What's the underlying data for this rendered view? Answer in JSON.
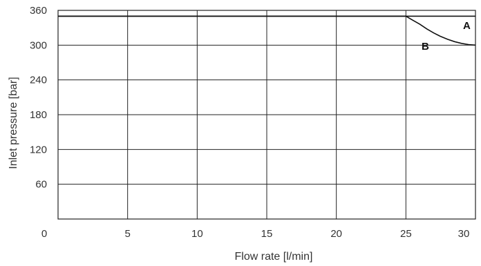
{
  "chart_data": {
    "type": "line",
    "xlabel": "Flow rate [l/min]",
    "ylabel": "Inlet pressure [bar]",
    "xlim": [
      0,
      30
    ],
    "ylim": [
      0,
      360
    ],
    "x_ticks": [
      0,
      5,
      10,
      15,
      20,
      25,
      30
    ],
    "y_ticks": [
      60,
      120,
      180,
      240,
      300,
      360
    ],
    "y_tick_labels_shown": [
      60,
      120,
      180,
      240,
      300,
      360
    ],
    "grid": true,
    "series": [
      {
        "name": "A",
        "x": [
          0,
          25,
          30
        ],
        "y": [
          350,
          350,
          350
        ]
      },
      {
        "name": "B",
        "x": [
          0,
          25,
          25.5,
          26,
          26.5,
          27,
          27.5,
          28,
          28.5,
          29,
          29.5,
          30
        ],
        "y": [
          350,
          350,
          343,
          336,
          328,
          321,
          315,
          310,
          306,
          303,
          301,
          300
        ]
      }
    ],
    "series_label_positions": {
      "A": "upper-right above line",
      "B": "right below line"
    }
  }
}
